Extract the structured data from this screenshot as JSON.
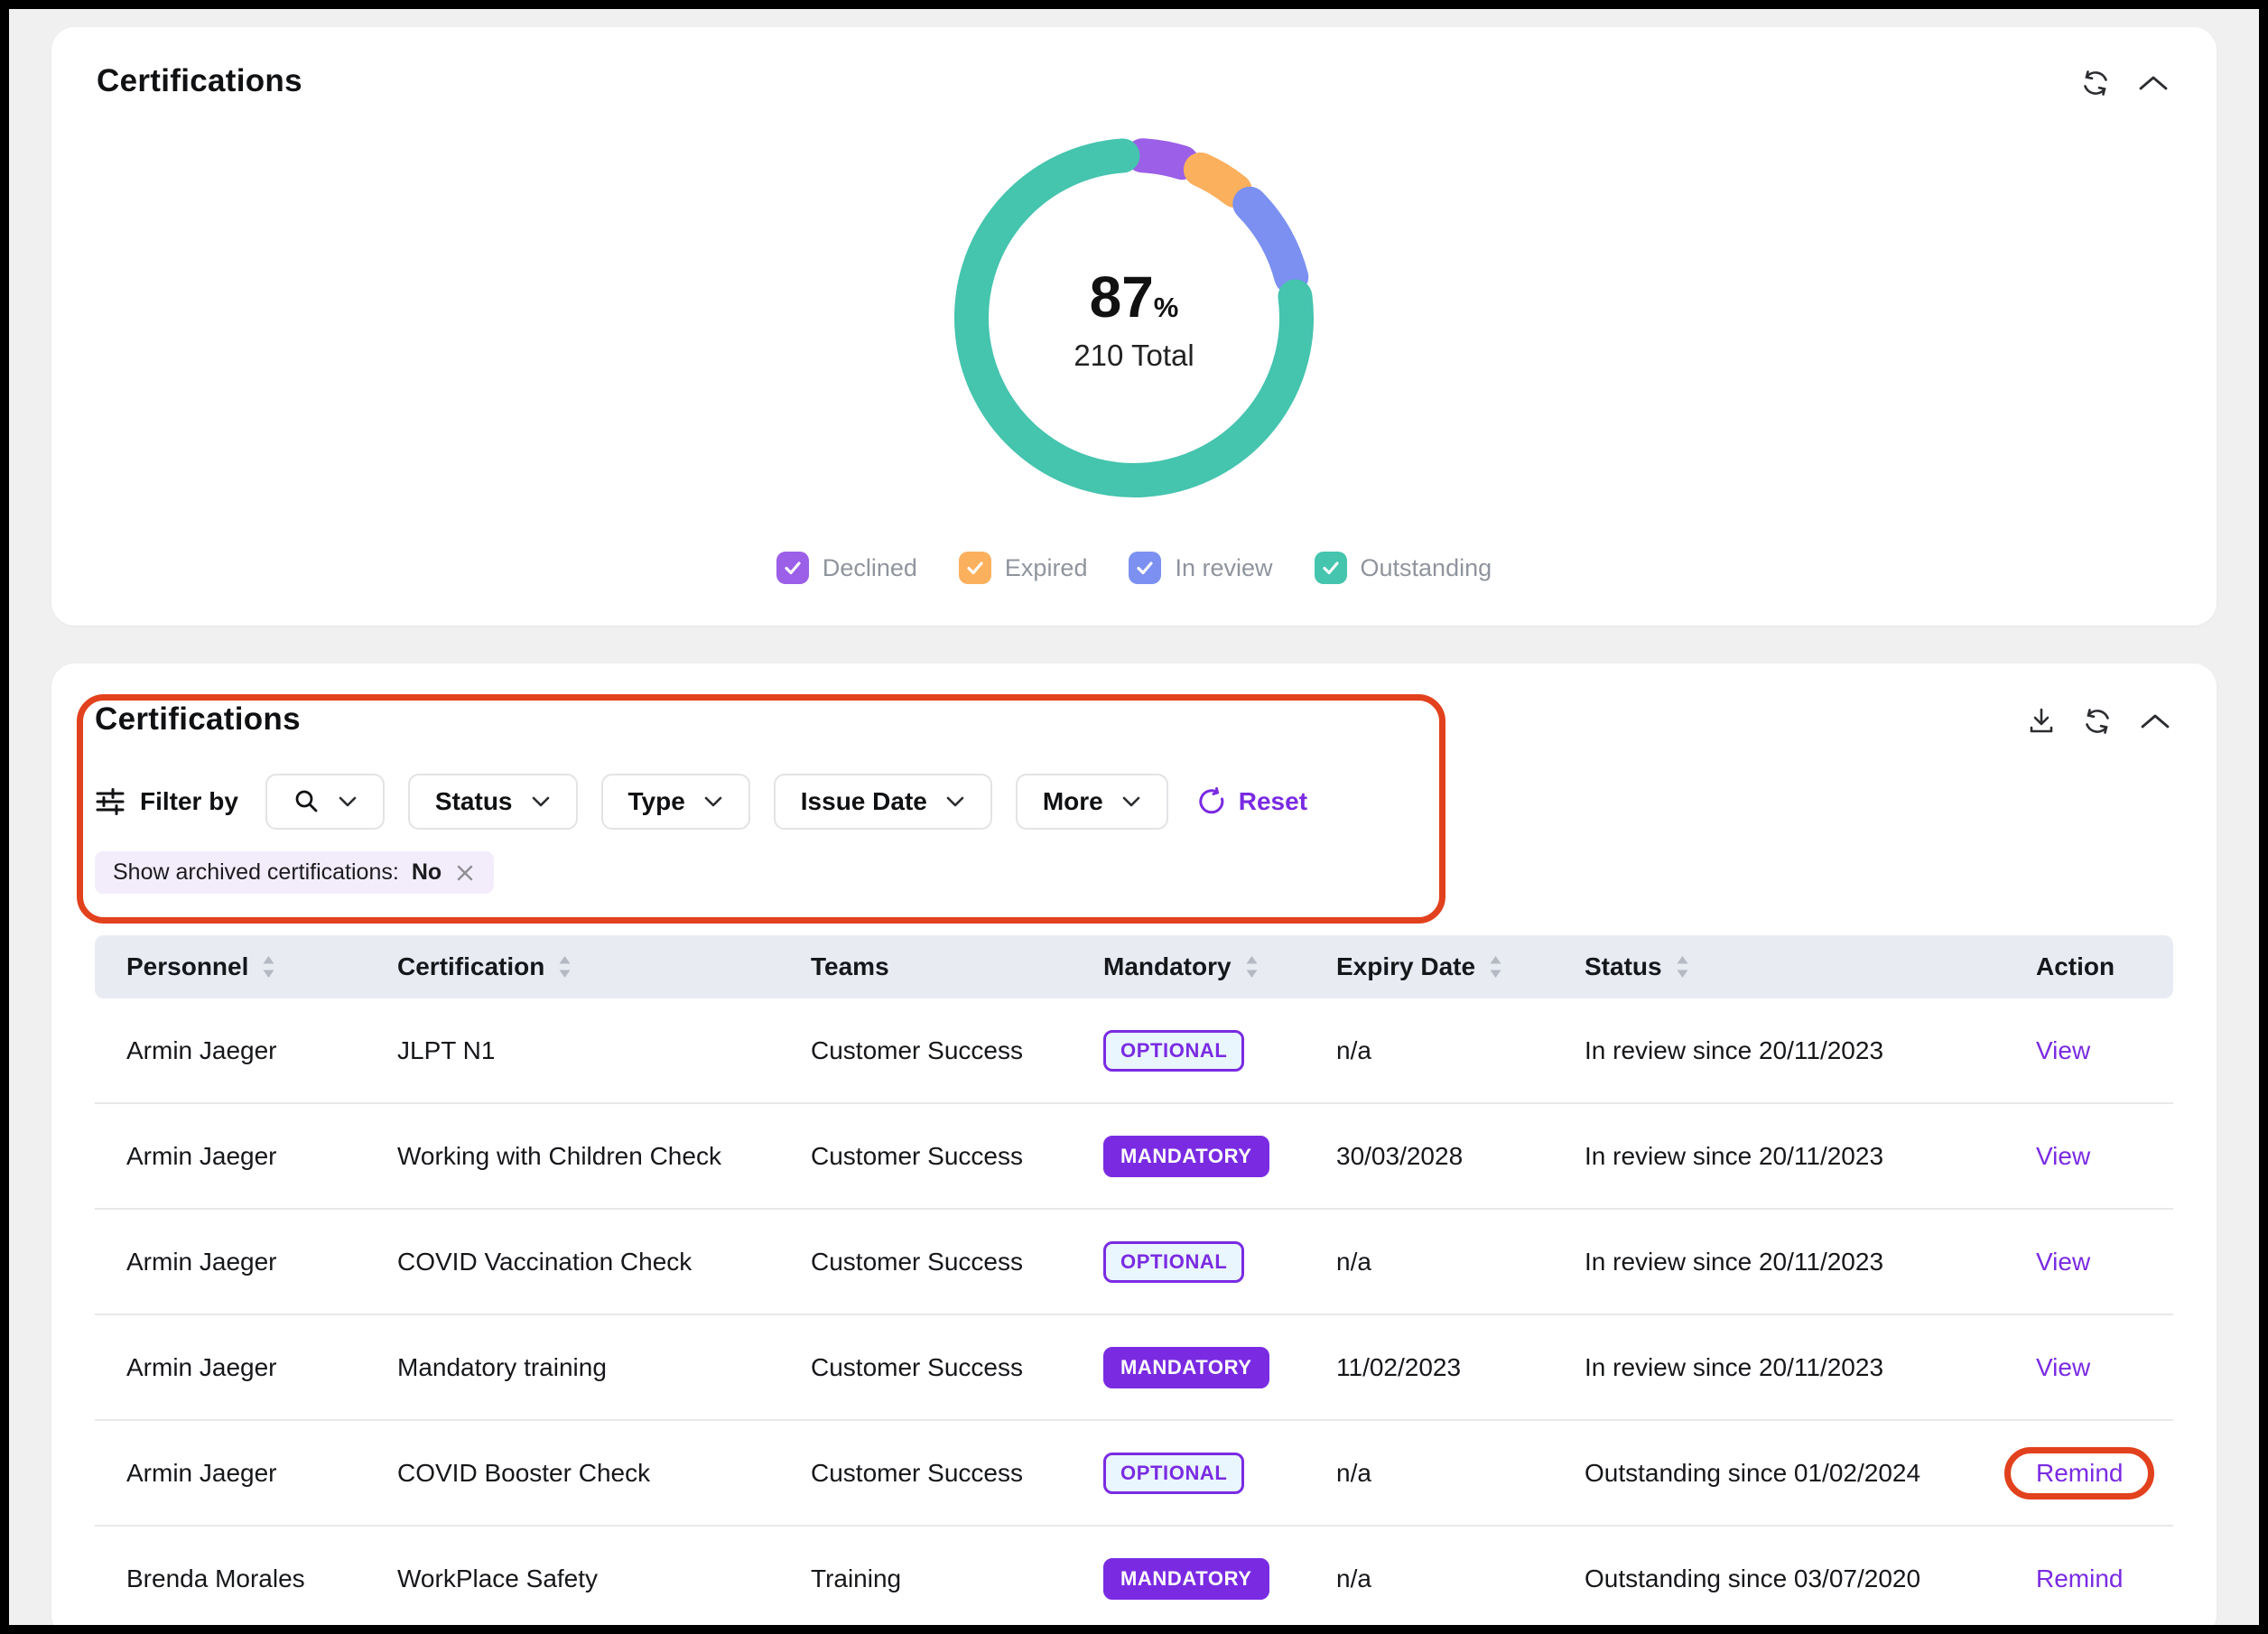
{
  "colors": {
    "page_bg": "#f0f0f0",
    "accent_purple": "#7a2be2",
    "annotation_red": "#e2411d",
    "table_header_bg": "#e9ebf3",
    "chip_bg": "#f3edfb"
  },
  "donut_card": {
    "title": "Certifications",
    "icons": [
      "refresh-icon",
      "collapse-icon"
    ],
    "chart_data": {
      "type": "pie",
      "subtype": "donut",
      "center_value": "87",
      "center_unit": "%",
      "center_subtitle": "210 Total",
      "total": 210,
      "legend_position": "bottom",
      "segments": [
        {
          "name": "Declined",
          "value": 9,
          "color": "#9b5fe8",
          "checked": true
        },
        {
          "name": "Expired",
          "value": 9,
          "color": "#fbb05e",
          "checked": true
        },
        {
          "name": "In review",
          "value": 19,
          "color": "#7b90f0",
          "checked": true
        },
        {
          "name": "Outstanding",
          "value": 173,
          "color": "#45c4ae",
          "checked": true
        }
      ]
    }
  },
  "table_card": {
    "title": "Certifications",
    "icons": [
      "download-icon",
      "refresh-icon",
      "collapse-icon"
    ],
    "filter_bar": {
      "filter_by_label": "Filter by",
      "search_button_icon": "search-icon",
      "dropdowns": [
        "Status",
        "Type",
        "Issue Date",
        "More"
      ],
      "reset_label": "Reset"
    },
    "active_filter_chip": {
      "label": "Show archived certifications:",
      "value": "No",
      "close_icon": "close-icon"
    },
    "columns": [
      {
        "label": "Personnel",
        "sortable": true
      },
      {
        "label": "Certification",
        "sortable": true
      },
      {
        "label": "Teams",
        "sortable": false
      },
      {
        "label": "Mandatory",
        "sortable": true
      },
      {
        "label": "Expiry Date",
        "sortable": true
      },
      {
        "label": "Status",
        "sortable": true
      },
      {
        "label": "Action",
        "sortable": false
      }
    ],
    "rows": [
      {
        "personnel": "Armin Jaeger",
        "certification": "JLPT N1",
        "teams": "Customer Success",
        "mandatory": "OPTIONAL",
        "expiry": "n/a",
        "status": "In review since 20/11/2023",
        "action": "View",
        "annotated": false
      },
      {
        "personnel": "Armin Jaeger",
        "certification": "Working with Children Check",
        "teams": "Customer Success",
        "mandatory": "MANDATORY",
        "expiry": "30/03/2028",
        "status": "In review since 20/11/2023",
        "action": "View",
        "annotated": false
      },
      {
        "personnel": "Armin Jaeger",
        "certification": "COVID Vaccination Check",
        "teams": "Customer Success",
        "mandatory": "OPTIONAL",
        "expiry": "n/a",
        "status": "In review since 20/11/2023",
        "action": "View",
        "annotated": false
      },
      {
        "personnel": "Armin Jaeger",
        "certification": "Mandatory training",
        "teams": "Customer Success",
        "mandatory": "MANDATORY",
        "expiry": "11/02/2023",
        "status": "In review since 20/11/2023",
        "action": "View",
        "annotated": false
      },
      {
        "personnel": "Armin Jaeger",
        "certification": "COVID Booster Check",
        "teams": "Customer Success",
        "mandatory": "OPTIONAL",
        "expiry": "n/a",
        "status": "Outstanding since 01/02/2024",
        "action": "Remind",
        "annotated": true
      },
      {
        "personnel": "Brenda Morales",
        "certification": "WorkPlace Safety",
        "teams": "Training",
        "mandatory": "MANDATORY",
        "expiry": "n/a",
        "status": "Outstanding since 03/07/2020",
        "action": "Remind",
        "annotated": false
      }
    ],
    "annotations": {
      "color": "#e2411d",
      "filter_bar_boxed": true,
      "circled_row_action_index": 4
    }
  }
}
